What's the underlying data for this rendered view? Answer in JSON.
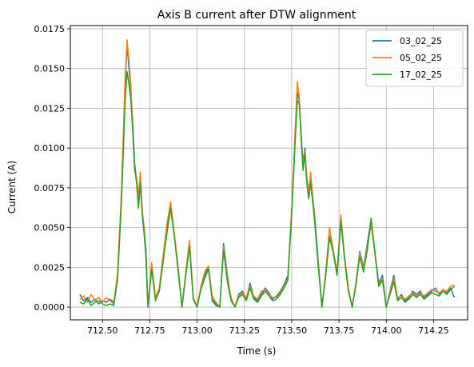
{
  "chart_data": {
    "type": "line",
    "title": "Axis B current after DTW alignment",
    "xlabel": "Time (s)",
    "ylabel": "Current (A)",
    "xlim": [
      712.33,
      714.43
    ],
    "ylim": [
      -0.0008,
      0.0177
    ],
    "grid": true,
    "legend_placement": "top-right",
    "x_ticks": [
      712.5,
      712.75,
      713.0,
      713.25,
      713.5,
      713.75,
      714.0,
      714.25
    ],
    "x_tick_labels": [
      "712.50",
      "712.75",
      "713.00",
      "713.25",
      "713.50",
      "713.75",
      "714.00",
      "714.25"
    ],
    "y_ticks": [
      0.0,
      0.0025,
      0.005,
      0.0075,
      0.01,
      0.0125,
      0.015,
      0.0175
    ],
    "y_tick_labels": [
      "0.0000",
      "0.0025",
      "0.0050",
      "0.0075",
      "0.0100",
      "0.0125",
      "0.0150",
      "0.0175"
    ],
    "series": [
      {
        "name": "03_02_25",
        "color": "#1f77b4",
        "x": [
          712.38,
          712.4,
          712.42,
          712.44,
          712.46,
          712.48,
          712.5,
          712.52,
          712.54,
          712.56,
          712.58,
          712.6,
          712.62,
          712.63,
          712.64,
          712.65,
          712.66,
          712.67,
          712.68,
          712.69,
          712.7,
          712.71,
          712.72,
          712.73,
          712.74,
          712.76,
          712.78,
          712.8,
          712.82,
          712.84,
          712.86,
          712.88,
          712.9,
          712.92,
          712.94,
          712.96,
          712.98,
          713.0,
          713.02,
          713.04,
          713.06,
          713.08,
          713.1,
          713.12,
          713.14,
          713.16,
          713.18,
          713.2,
          713.22,
          713.24,
          713.26,
          713.28,
          713.3,
          713.32,
          713.34,
          713.36,
          713.38,
          713.4,
          713.42,
          713.44,
          713.46,
          713.48,
          713.5,
          713.52,
          713.53,
          713.54,
          713.55,
          713.56,
          713.57,
          713.58,
          713.59,
          713.6,
          713.62,
          713.64,
          713.66,
          713.68,
          713.7,
          713.72,
          713.74,
          713.76,
          713.78,
          713.8,
          713.82,
          713.84,
          713.86,
          713.88,
          713.9,
          713.92,
          713.94,
          713.96,
          713.98,
          714.0,
          714.02,
          714.04,
          714.06,
          714.08,
          714.1,
          714.12,
          714.14,
          714.16,
          714.18,
          714.2,
          714.22,
          714.24,
          714.26,
          714.28,
          714.3,
          714.32,
          714.34,
          714.36
        ],
        "y": [
          0.0008,
          0.0004,
          0.0006,
          0.0003,
          0.0005,
          0.0002,
          0.0004,
          0.0003,
          0.0005,
          0.0003,
          0.002,
          0.007,
          0.014,
          0.0165,
          0.015,
          0.0135,
          0.0115,
          0.009,
          0.008,
          0.0065,
          0.008,
          0.006,
          0.005,
          0.0035,
          0.0,
          0.0025,
          0.0005,
          0.001,
          0.003,
          0.005,
          0.0064,
          0.0045,
          0.0025,
          0.0,
          0.002,
          0.004,
          0.0005,
          0.0,
          0.0012,
          0.002,
          0.0025,
          0.0005,
          0.0002,
          0.0,
          0.004,
          0.002,
          0.0005,
          0.0,
          0.0008,
          0.001,
          0.0005,
          0.0015,
          0.0006,
          0.0004,
          0.0008,
          0.0012,
          0.0009,
          0.0005,
          0.0007,
          0.001,
          0.0014,
          0.002,
          0.006,
          0.011,
          0.0135,
          0.013,
          0.011,
          0.009,
          0.01,
          0.008,
          0.007,
          0.008,
          0.006,
          0.003,
          0.0,
          0.002,
          0.0045,
          0.0035,
          0.002,
          0.0055,
          0.003,
          0.001,
          0.0,
          0.0015,
          0.0035,
          0.0025,
          0.004,
          0.0055,
          0.0035,
          0.0015,
          0.002,
          0.0,
          0.001,
          0.002,
          0.0005,
          0.0008,
          0.0004,
          0.0006,
          0.001,
          0.0008,
          0.001,
          0.0006,
          0.0008,
          0.001,
          0.0012,
          0.0008,
          0.001,
          0.0009,
          0.0012,
          0.0006
        ]
      },
      {
        "name": "05_02_25",
        "color": "#ff7f0e",
        "x": [
          712.38,
          712.4,
          712.42,
          712.44,
          712.46,
          712.48,
          712.5,
          712.52,
          712.54,
          712.56,
          712.58,
          712.6,
          712.62,
          712.63,
          712.64,
          712.65,
          712.66,
          712.67,
          712.68,
          712.69,
          712.7,
          712.71,
          712.72,
          712.73,
          712.74,
          712.76,
          712.78,
          712.8,
          712.82,
          712.84,
          712.86,
          712.88,
          712.9,
          712.92,
          712.94,
          712.96,
          712.98,
          713.0,
          713.02,
          713.04,
          713.06,
          713.08,
          713.1,
          713.12,
          713.14,
          713.16,
          713.18,
          713.2,
          713.22,
          713.24,
          713.26,
          713.28,
          713.3,
          713.32,
          713.34,
          713.36,
          713.38,
          713.4,
          713.42,
          713.44,
          713.46,
          713.48,
          713.5,
          713.52,
          713.53,
          713.54,
          713.55,
          713.56,
          713.57,
          713.58,
          713.59,
          713.6,
          713.62,
          713.64,
          713.66,
          713.68,
          713.7,
          713.72,
          713.74,
          713.76,
          713.78,
          713.8,
          713.82,
          713.84,
          713.86,
          713.88,
          713.9,
          713.92,
          713.94,
          713.96,
          713.98,
          714.0,
          714.02,
          714.04,
          714.06,
          714.08,
          714.1,
          714.12,
          714.14,
          714.16,
          714.18,
          714.2,
          714.22,
          714.24,
          714.26,
          714.28,
          714.3,
          714.32,
          714.34,
          714.36
        ],
        "y": [
          0.0005,
          0.0007,
          0.0003,
          0.0008,
          0.0004,
          0.0006,
          0.0003,
          0.0006,
          0.0004,
          0.0002,
          0.0022,
          0.0072,
          0.0145,
          0.0168,
          0.0155,
          0.014,
          0.011,
          0.0085,
          0.0082,
          0.007,
          0.0085,
          0.0062,
          0.0048,
          0.0032,
          0.0,
          0.0028,
          0.0006,
          0.0012,
          0.0032,
          0.0052,
          0.0066,
          0.0046,
          0.0024,
          0.0,
          0.0022,
          0.0042,
          0.0006,
          0.0,
          0.0013,
          0.0022,
          0.0026,
          0.0007,
          0.0003,
          0.0,
          0.0038,
          0.0018,
          0.0006,
          0.0,
          0.0007,
          0.0009,
          0.0006,
          0.0013,
          0.0007,
          0.0005,
          0.001,
          0.0011,
          0.0008,
          0.0006,
          0.0006,
          0.0009,
          0.0013,
          0.0018,
          0.0062,
          0.0115,
          0.0142,
          0.0132,
          0.0108,
          0.0088,
          0.0098,
          0.0082,
          0.0072,
          0.0085,
          0.0058,
          0.0028,
          0.0,
          0.0022,
          0.005,
          0.0036,
          0.0022,
          0.0058,
          0.0032,
          0.0012,
          0.0,
          0.0016,
          0.0034,
          0.0024,
          0.0038,
          0.0052,
          0.0034,
          0.0014,
          0.0018,
          0.0,
          0.0009,
          0.0018,
          0.0006,
          0.0007,
          0.0005,
          0.0007,
          0.0009,
          0.0007,
          0.0009,
          0.0007,
          0.0009,
          0.0011,
          0.001,
          0.0009,
          0.0011,
          0.001,
          0.0013,
          0.0014
        ]
      },
      {
        "name": "17_02_25",
        "color": "#2ca02c",
        "x": [
          712.38,
          712.4,
          712.42,
          712.44,
          712.46,
          712.48,
          712.5,
          712.52,
          712.54,
          712.56,
          712.58,
          712.6,
          712.62,
          712.63,
          712.64,
          712.65,
          712.66,
          712.67,
          712.68,
          712.69,
          712.7,
          712.71,
          712.72,
          712.73,
          712.74,
          712.76,
          712.78,
          712.8,
          712.82,
          712.84,
          712.86,
          712.88,
          712.9,
          712.92,
          712.94,
          712.96,
          712.98,
          713.0,
          713.02,
          713.04,
          713.06,
          713.08,
          713.1,
          713.12,
          713.14,
          713.16,
          713.18,
          713.2,
          713.22,
          713.24,
          713.26,
          713.28,
          713.3,
          713.32,
          713.34,
          713.36,
          713.38,
          713.4,
          713.42,
          713.44,
          713.46,
          713.48,
          713.5,
          713.52,
          713.53,
          713.54,
          713.55,
          713.56,
          713.57,
          713.58,
          713.59,
          713.6,
          713.62,
          713.64,
          713.66,
          713.68,
          713.7,
          713.72,
          713.74,
          713.76,
          713.78,
          713.8,
          713.82,
          713.84,
          713.86,
          713.88,
          713.9,
          713.92,
          713.94,
          713.96,
          713.98,
          714.0,
          714.02,
          714.04,
          714.06,
          714.08,
          714.1,
          714.12,
          714.14,
          714.16,
          714.18,
          714.2,
          714.22,
          714.24,
          714.26,
          714.28,
          714.3,
          714.32,
          714.34,
          714.36
        ],
        "y": [
          0.0003,
          0.0002,
          0.0005,
          0.0001,
          0.0003,
          0.0004,
          0.0002,
          0.0001,
          0.0002,
          0.0001,
          0.0018,
          0.0065,
          0.013,
          0.0148,
          0.014,
          0.013,
          0.011,
          0.0088,
          0.0078,
          0.0062,
          0.0078,
          0.0058,
          0.0046,
          0.003,
          0.0,
          0.0024,
          0.0004,
          0.001,
          0.0028,
          0.0046,
          0.0062,
          0.0044,
          0.0022,
          0.0,
          0.002,
          0.0038,
          0.0005,
          0.0,
          0.0011,
          0.0018,
          0.0024,
          0.0004,
          0.0001,
          0.0,
          0.0036,
          0.0016,
          0.0004,
          0.0,
          0.0006,
          0.0008,
          0.0004,
          0.0012,
          0.0005,
          0.0003,
          0.0007,
          0.001,
          0.0007,
          0.0004,
          0.0005,
          0.0008,
          0.0012,
          0.0017,
          0.0058,
          0.0108,
          0.013,
          0.0128,
          0.0106,
          0.0086,
          0.0096,
          0.0078,
          0.0068,
          0.0078,
          0.0056,
          0.0026,
          0.0,
          0.002,
          0.0044,
          0.0034,
          0.002,
          0.0054,
          0.003,
          0.001,
          0.0,
          0.0014,
          0.0032,
          0.0022,
          0.0036,
          0.0056,
          0.0034,
          0.0013,
          0.0017,
          0.0,
          0.0008,
          0.0016,
          0.0004,
          0.0006,
          0.0003,
          0.0005,
          0.0008,
          0.0006,
          0.0008,
          0.0005,
          0.0007,
          0.0009,
          0.0008,
          0.0007,
          0.001,
          0.0008,
          0.0011,
          0.0013
        ]
      }
    ]
  }
}
